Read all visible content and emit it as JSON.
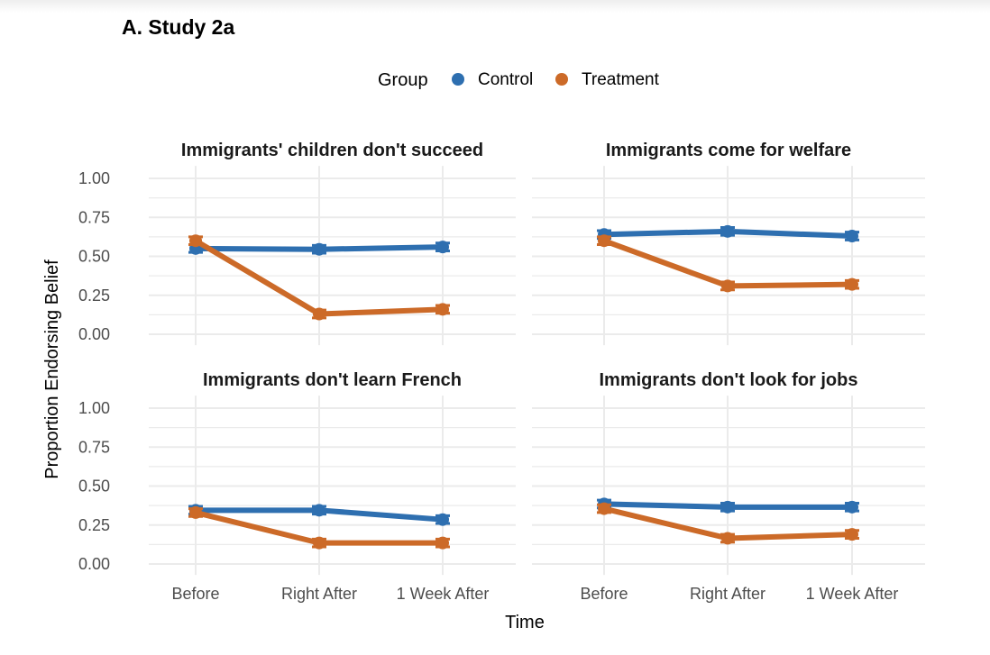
{
  "chart_data": {
    "type": "line",
    "title": "A. Study 2a",
    "xlabel": "Time",
    "ylabel": "Proportion Endorsing Belief",
    "legend": {
      "title": "Group",
      "position": "top",
      "entries": [
        "Control",
        "Treatment"
      ]
    },
    "colors": {
      "Control": "#2e6fb0",
      "Treatment": "#cc6a28"
    },
    "categories": [
      "Before",
      "Right After",
      "1 Week After"
    ],
    "ylim": [
      0,
      1
    ],
    "yticks": [
      "0.00",
      "0.25",
      "0.50",
      "0.75",
      "1.00"
    ],
    "grid": true,
    "error_bars": true,
    "panels": [
      {
        "title": "Immigrants' children don't succeed",
        "series": [
          {
            "name": "Control",
            "values": [
              0.55,
              0.545,
              0.56
            ]
          },
          {
            "name": "Treatment",
            "values": [
              0.6,
              0.13,
              0.16
            ]
          }
        ]
      },
      {
        "title": "Immigrants come for welfare",
        "series": [
          {
            "name": "Control",
            "values": [
              0.64,
              0.66,
              0.63
            ]
          },
          {
            "name": "Treatment",
            "values": [
              0.6,
              0.31,
              0.32
            ]
          }
        ]
      },
      {
        "title": "Immigrants don't learn French",
        "series": [
          {
            "name": "Control",
            "values": [
              0.345,
              0.345,
              0.285
            ]
          },
          {
            "name": "Treatment",
            "values": [
              0.33,
              0.135,
              0.135
            ]
          }
        ]
      },
      {
        "title": "Immigrants don't look for jobs",
        "series": [
          {
            "name": "Control",
            "values": [
              0.385,
              0.365,
              0.365
            ]
          },
          {
            "name": "Treatment",
            "values": [
              0.355,
              0.165,
              0.19
            ]
          }
        ]
      }
    ]
  }
}
